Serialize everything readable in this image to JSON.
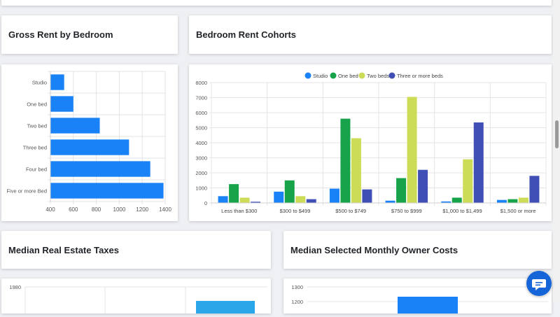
{
  "cards": {
    "gross_rent_title": "Gross Rent by Bedroom",
    "cohorts_title": "Bedroom Rent Cohorts",
    "taxes_title": "Median Real Estate Taxes",
    "owner_costs_title": "Median Selected Monthly Owner Costs"
  },
  "chat": {
    "icon": "chat-bubble-icon"
  },
  "colors": {
    "primary": "#1a82f7",
    "studio": "#1a82f7",
    "one_bed": "#16a34a",
    "two_beds": "#cddc56",
    "three_plus": "#3f4fb5",
    "chat_button": "#1565d8"
  },
  "chart_data": [
    {
      "type": "bar",
      "orientation": "horizontal",
      "categories": [
        "Studio",
        "One bed",
        "Two bed",
        "Three bed",
        "Four bed",
        "Five or more Bed"
      ],
      "values": [
        520,
        600,
        830,
        1085,
        1270,
        1385
      ],
      "xlim": [
        400,
        1400
      ],
      "xticks": [
        400,
        600,
        800,
        1000,
        1200,
        1400
      ],
      "grid": true
    },
    {
      "type": "bar",
      "categories": [
        "Less than $300",
        "$300 to $499",
        "$500 to $749",
        "$750 to $999",
        "$1,000 to $1,499",
        "$1,500 or more"
      ],
      "series": [
        {
          "name": "Studio",
          "color": "#1a82f7",
          "values": [
            450,
            750,
            950,
            150,
            100,
            200
          ]
        },
        {
          "name": "One bed",
          "color": "#16a34a",
          "values": [
            1250,
            1500,
            5600,
            1650,
            350,
            250
          ]
        },
        {
          "name": "Two beds",
          "color": "#cddc56",
          "values": [
            350,
            450,
            4300,
            7050,
            2900,
            350
          ]
        },
        {
          "name": "Three or more beds",
          "color": "#3f4fb5",
          "values": [
            80,
            250,
            900,
            2200,
            5350,
            1800
          ]
        }
      ],
      "ylim": [
        0,
        8000
      ],
      "yticks": [
        0,
        1000,
        2000,
        3000,
        4000,
        5000,
        6000,
        7000,
        8000
      ],
      "legend": "top-center",
      "grid": true
    },
    {
      "type": "bar",
      "yticks_visible": [
        1980
      ],
      "partial": true
    },
    {
      "type": "bar",
      "yticks_visible": [
        1300,
        1200
      ],
      "partial": true
    }
  ]
}
